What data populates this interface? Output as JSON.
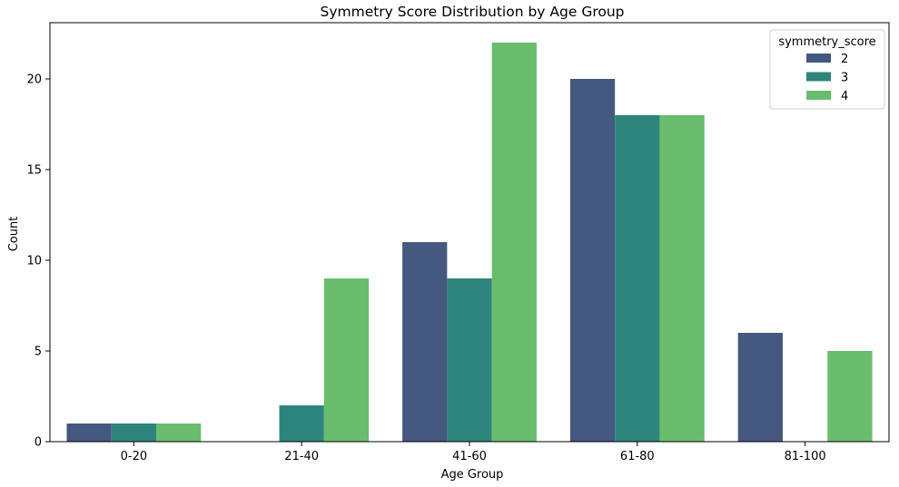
{
  "chart_data": {
    "type": "bar",
    "title": "Symmetry Score Distribution by Age Group",
    "xlabel": "Age Group",
    "ylabel": "Count",
    "categories": [
      "0-20",
      "21-40",
      "41-60",
      "61-80",
      "81-100"
    ],
    "series": [
      {
        "name": "2",
        "color": "#45587f",
        "values": [
          1,
          0,
          11,
          20,
          6
        ]
      },
      {
        "name": "3",
        "color": "#2d847c",
        "values": [
          1,
          2,
          9,
          18,
          0
        ]
      },
      {
        "name": "4",
        "color": "#69bd6c",
        "values": [
          1,
          9,
          22,
          18,
          5
        ]
      }
    ],
    "ylim": [
      0,
      23.1
    ],
    "yticks": [
      0,
      5,
      10,
      15,
      20
    ],
    "grid": false,
    "legend": {
      "title": "symmetry_score",
      "placement": "top-right"
    }
  }
}
